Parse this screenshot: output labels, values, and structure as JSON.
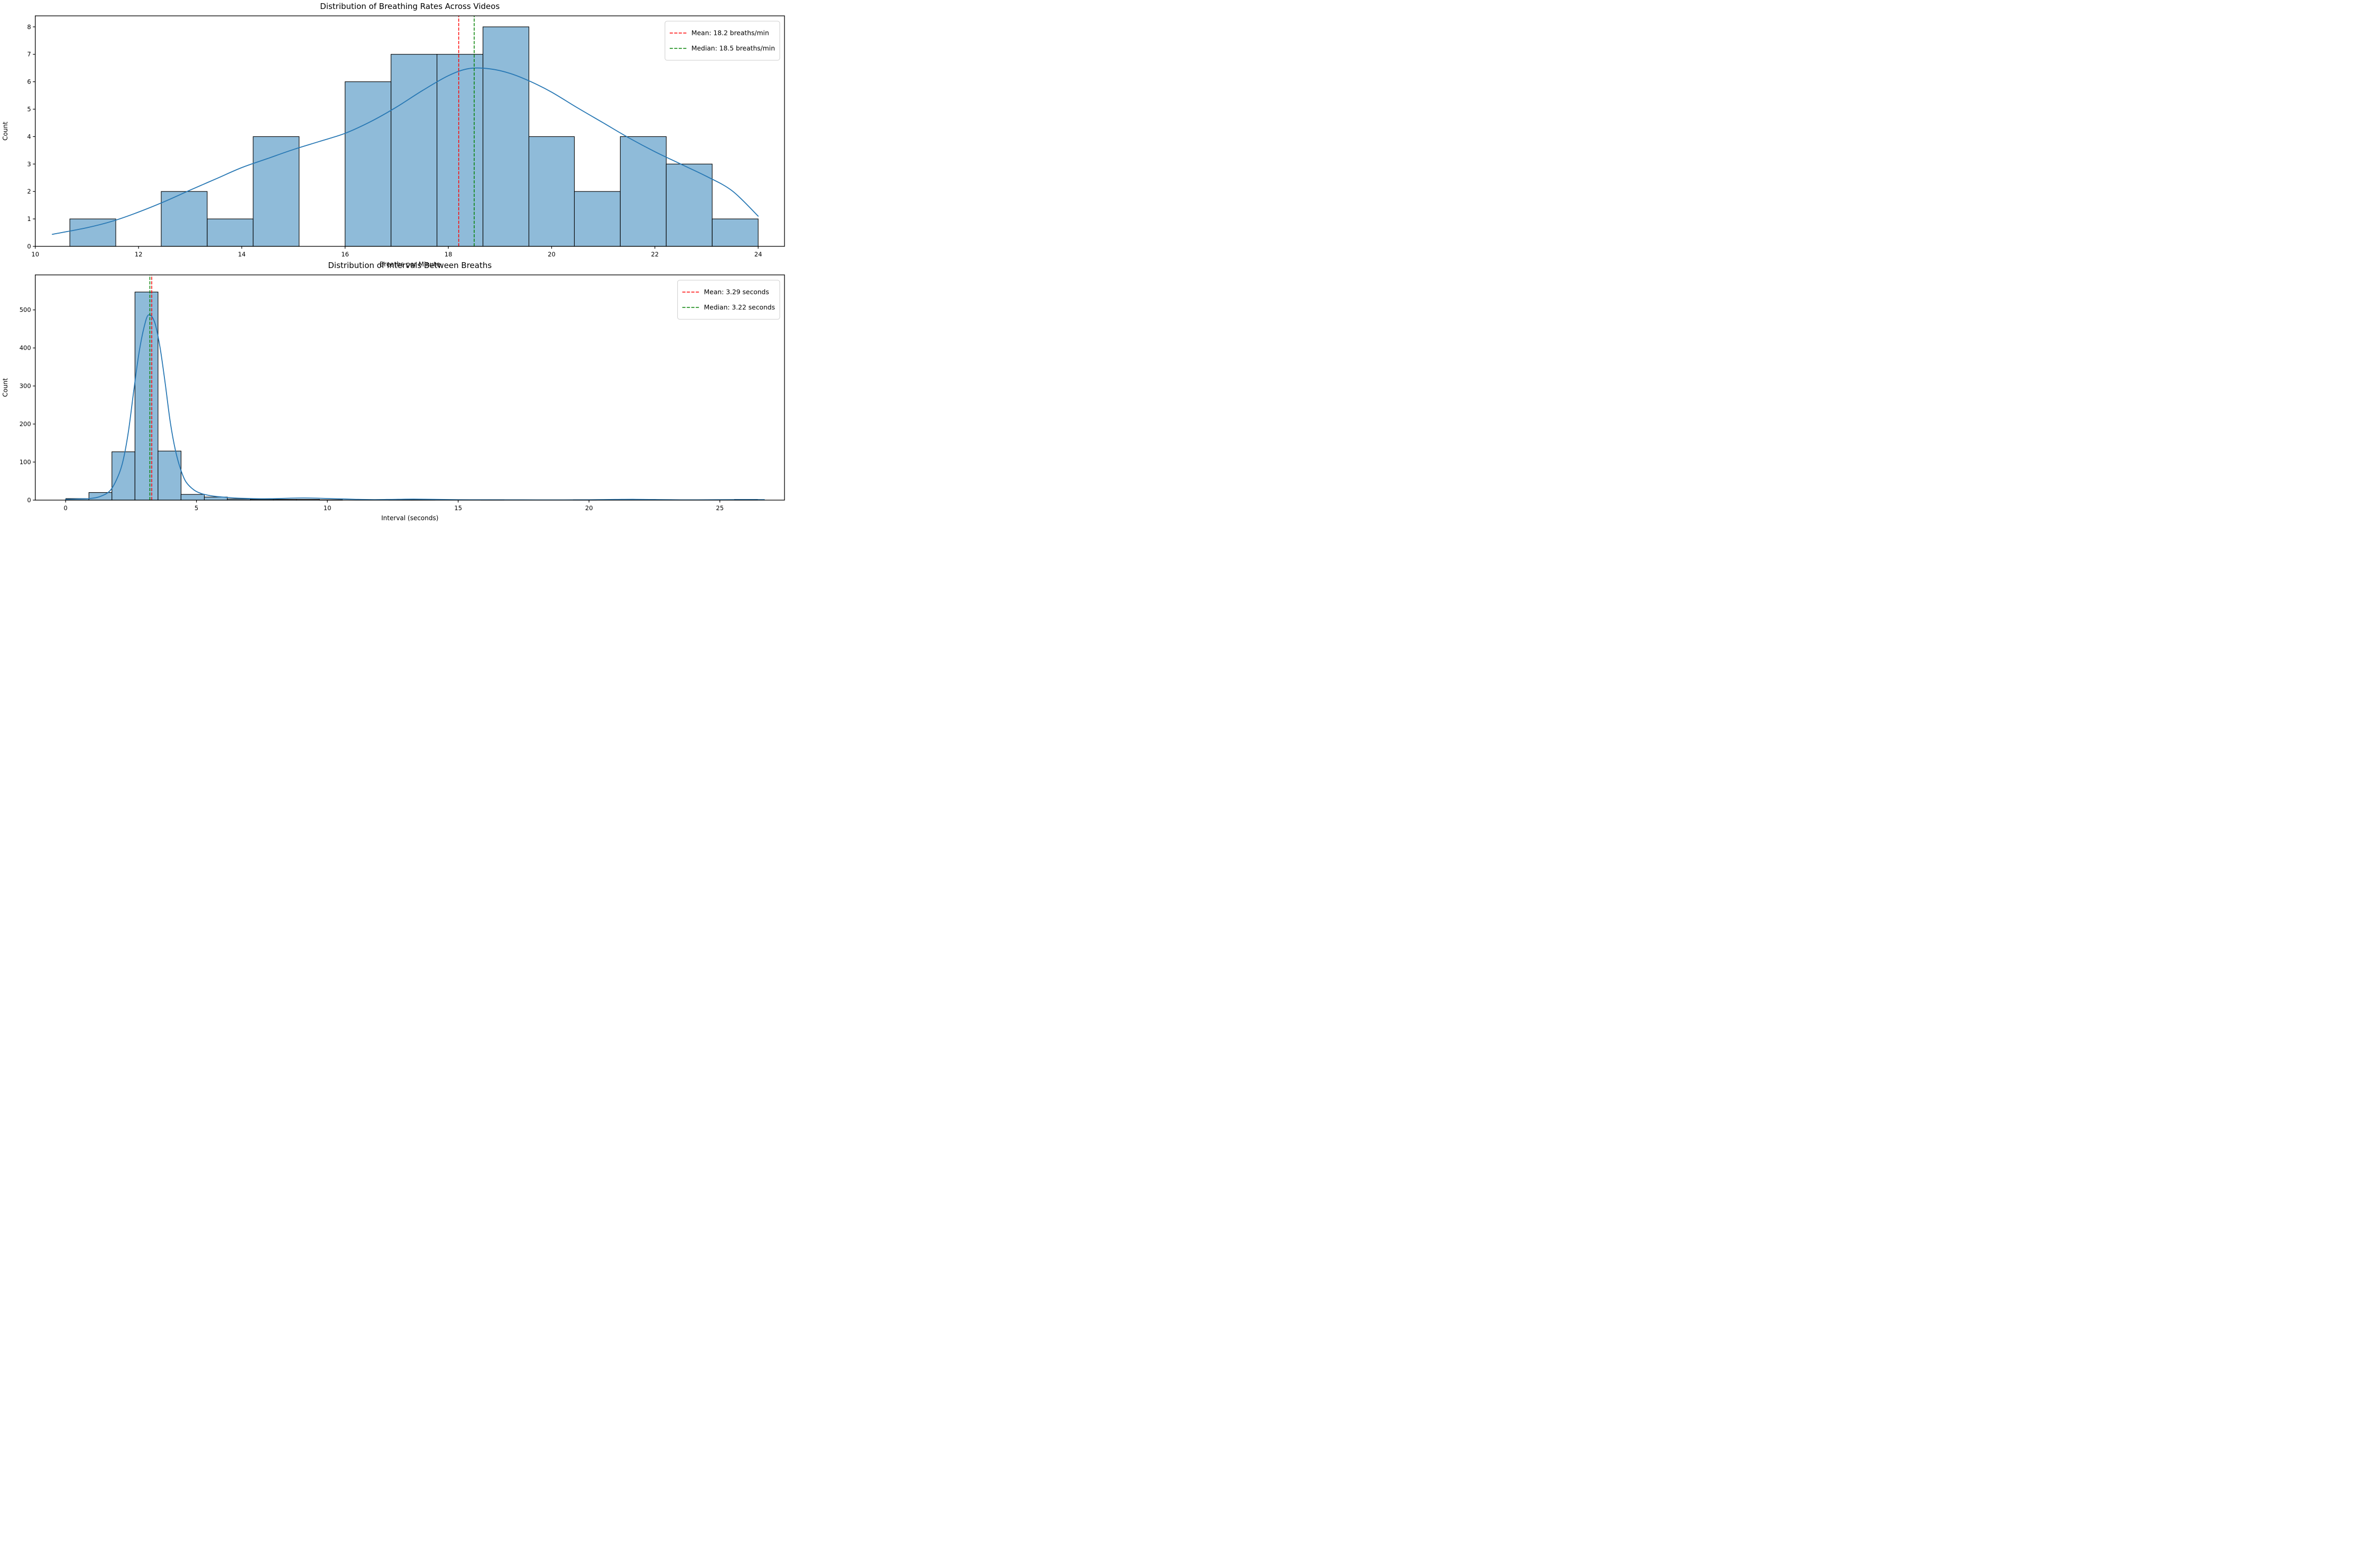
{
  "figure": {
    "background": "#ffffff"
  },
  "colors": {
    "bar_fill": "#8fbbd9",
    "bar_edge": "#000000",
    "kde_line": "#2878b4",
    "mean_line": "#ff0000",
    "median_line": "#008000",
    "legend_border": "#cccccc",
    "text": "#000000"
  },
  "chart_data": [
    {
      "type": "bar",
      "subtype": "histogram_with_kde",
      "title": "Distribution of Breathing Rates Across Videos",
      "xlabel": "Breaths per Minute",
      "ylabel": "Count",
      "xlim": [
        10,
        24.51
      ],
      "ylim": [
        0,
        8.4
      ],
      "xticks": [
        10,
        12,
        14,
        16,
        18,
        20,
        22,
        24
      ],
      "yticks": [
        0,
        1,
        2,
        3,
        4,
        5,
        6,
        7,
        8
      ],
      "grid": false,
      "legend_position": "upper right",
      "bin_edges": [
        10.67,
        11.56,
        12.44,
        13.33,
        14.22,
        15.11,
        16.0,
        16.89,
        17.78,
        18.67,
        19.56,
        20.44,
        21.33,
        22.22,
        23.11,
        24.0
      ],
      "counts": [
        1,
        0,
        2,
        1,
        4,
        0,
        6,
        7,
        7,
        8,
        4,
        2,
        4,
        3,
        1
      ],
      "kde": [
        [
          10.33,
          0.44
        ],
        [
          11.0,
          0.68
        ],
        [
          11.5,
          0.92
        ],
        [
          12.0,
          1.25
        ],
        [
          12.5,
          1.63
        ],
        [
          13.0,
          2.05
        ],
        [
          13.5,
          2.46
        ],
        [
          14.0,
          2.87
        ],
        [
          14.5,
          3.2
        ],
        [
          15.0,
          3.53
        ],
        [
          15.5,
          3.82
        ],
        [
          16.0,
          4.12
        ],
        [
          16.5,
          4.55
        ],
        [
          17.0,
          5.08
        ],
        [
          17.5,
          5.68
        ],
        [
          18.0,
          6.22
        ],
        [
          18.4,
          6.48
        ],
        [
          18.8,
          6.47
        ],
        [
          19.2,
          6.3
        ],
        [
          19.6,
          6.0
        ],
        [
          20.0,
          5.62
        ],
        [
          20.5,
          5.05
        ],
        [
          21.0,
          4.5
        ],
        [
          21.5,
          3.95
        ],
        [
          22.0,
          3.45
        ],
        [
          22.5,
          3.0
        ],
        [
          23.0,
          2.55
        ],
        [
          23.5,
          2.02
        ],
        [
          24.0,
          1.1
        ]
      ],
      "mean": {
        "value": 18.2,
        "label": "Mean: 18.2 breaths/min"
      },
      "median": {
        "value": 18.5,
        "label": "Median: 18.5 breaths/min"
      }
    },
    {
      "type": "bar",
      "subtype": "histogram_with_kde",
      "title": "Distribution of Intervals Between Breaths",
      "xlabel": "Interval (seconds)",
      "ylabel": "Count",
      "xlim": [
        -1.16,
        27.47
      ],
      "ylim": [
        0,
        592
      ],
      "xticks": [
        0,
        5,
        10,
        15,
        20,
        25
      ],
      "yticks": [
        0,
        100,
        200,
        300,
        400,
        500
      ],
      "grid": false,
      "legend_position": "upper right",
      "bin_edges": [
        0.01,
        0.89,
        1.77,
        2.65,
        3.53,
        4.41,
        5.3,
        6.18,
        7.06,
        7.94,
        8.82,
        9.7,
        10.58,
        11.47,
        12.35,
        13.23,
        14.11,
        14.99,
        15.87,
        16.75,
        17.63,
        18.51,
        19.4,
        20.28,
        21.16,
        22.04,
        22.92,
        23.8,
        24.68,
        25.56,
        26.44
      ],
      "counts": [
        4,
        20,
        127,
        547,
        129,
        15,
        8,
        3,
        2,
        2,
        2,
        1,
        0,
        0,
        1,
        1,
        0,
        0,
        1,
        0,
        0,
        0,
        1,
        0,
        0,
        0,
        0,
        0,
        0,
        2
      ],
      "kde": [
        [
          0.0,
          2
        ],
        [
          0.5,
          3
        ],
        [
          0.9,
          4
        ],
        [
          1.3,
          9
        ],
        [
          1.7,
          25
        ],
        [
          2.0,
          62
        ],
        [
          2.2,
          105
        ],
        [
          2.4,
          180
        ],
        [
          2.6,
          285
        ],
        [
          2.8,
          385
        ],
        [
          3.0,
          455
        ],
        [
          3.17,
          487
        ],
        [
          3.4,
          468
        ],
        [
          3.6,
          405
        ],
        [
          3.8,
          310
        ],
        [
          4.0,
          205
        ],
        [
          4.2,
          130
        ],
        [
          4.4,
          80
        ],
        [
          4.6,
          48
        ],
        [
          4.9,
          27
        ],
        [
          5.2,
          17
        ],
        [
          5.6,
          11
        ],
        [
          6.1,
          7.5
        ],
        [
          6.6,
          5
        ],
        [
          7.1,
          4
        ],
        [
          7.6,
          3.5
        ],
        [
          8.1,
          4
        ],
        [
          8.6,
          5
        ],
        [
          9.1,
          5.5
        ],
        [
          9.6,
          5
        ],
        [
          10.1,
          4
        ],
        [
          10.6,
          3
        ],
        [
          11.1,
          2
        ],
        [
          11.8,
          1.2
        ],
        [
          12.6,
          2
        ],
        [
          13.3,
          2.5
        ],
        [
          14.1,
          2
        ],
        [
          15.0,
          1
        ],
        [
          16.0,
          0.8
        ],
        [
          17.0,
          0.7
        ],
        [
          18.0,
          0.6
        ],
        [
          19.0,
          0.6
        ],
        [
          20.0,
          0.9
        ],
        [
          21.0,
          1.6
        ],
        [
          21.8,
          2
        ],
        [
          22.6,
          1.4
        ],
        [
          23.5,
          0.7
        ],
        [
          24.5,
          0.8
        ],
        [
          25.5,
          1.3
        ],
        [
          26.3,
          1.4
        ],
        [
          26.7,
          1.1
        ]
      ],
      "mean": {
        "value": 3.29,
        "label": "Mean: 3.29 seconds"
      },
      "median": {
        "value": 3.22,
        "label": "Median: 3.22 seconds"
      }
    }
  ]
}
